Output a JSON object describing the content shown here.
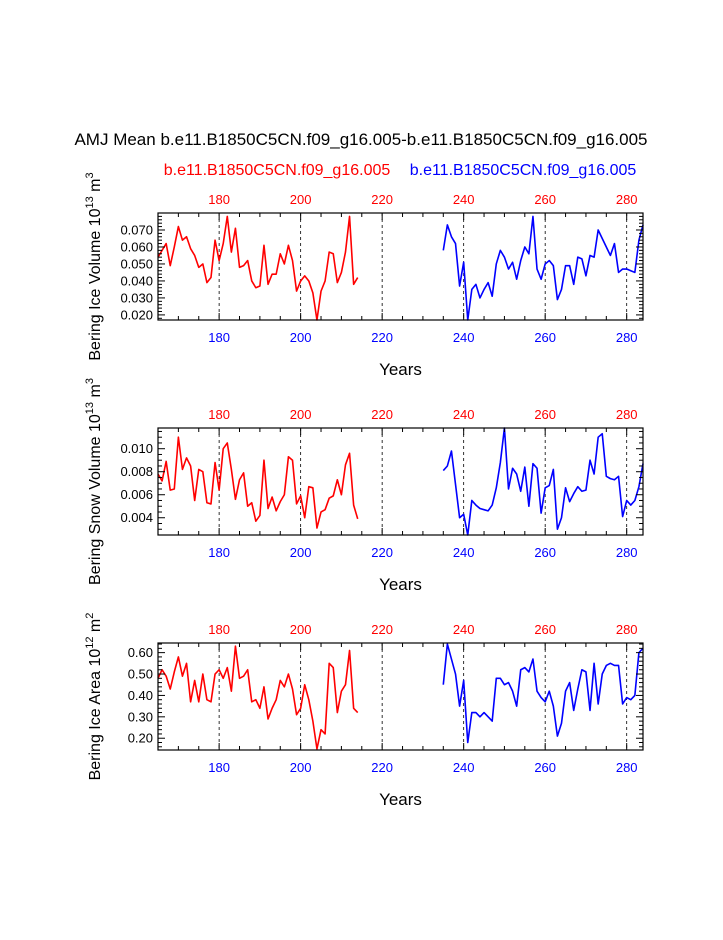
{
  "title": "AMJ Mean b.e11.B1850C5CN.f09_g16.005-b.e11.B1850C5CN.f09_g16.005",
  "legend": {
    "left_case": "b.e11.B1850C5CN.f09_g16.005",
    "right_case": "b.e11.B1850C5CN.f09_g16.005",
    "left_color": "#ff0000",
    "right_color": "#0000ff"
  },
  "chart_data": [
    {
      "type": "line",
      "ylabel_main": "Bering Ice Volume 10",
      "ylabel_exp": "13",
      "ylabel_unit": " m",
      "ylabel_unit_exp": "3",
      "xlabel": "Years",
      "xlim": [
        165,
        284
      ],
      "ylim": [
        0.017,
        0.08
      ],
      "xticks": [
        180,
        200,
        220,
        240,
        260,
        280
      ],
      "top_xticks": [
        180,
        200,
        220,
        240,
        260,
        280
      ],
      "bottom_xticks": [
        180,
        200,
        220,
        240,
        260,
        280
      ],
      "yticks": [
        0.02,
        0.03,
        0.04,
        0.05,
        0.06,
        0.07
      ],
      "ytick_labels": [
        "0.020",
        "0.030",
        "0.040",
        "0.050",
        "0.060",
        "0.070"
      ],
      "yminor_step": 0.002,
      "gridlines_x": [
        180,
        200,
        220,
        240,
        260,
        280
      ],
      "series": [
        {
          "color": "#ff0000",
          "x": [
            165,
            166,
            167,
            168,
            169,
            170,
            171,
            172,
            173,
            174,
            175,
            176,
            177,
            178,
            179,
            180,
            181,
            182,
            183,
            184,
            185,
            186,
            187,
            188,
            189,
            190,
            191,
            192,
            193,
            194,
            195,
            196,
            197,
            198,
            199,
            200,
            201,
            202,
            203,
            204,
            205,
            206,
            207,
            208,
            209,
            210,
            211,
            212,
            213,
            214
          ],
          "y": [
            0.054,
            0.058,
            0.062,
            0.049,
            0.06,
            0.072,
            0.064,
            0.066,
            0.059,
            0.055,
            0.048,
            0.05,
            0.039,
            0.042,
            0.064,
            0.052,
            0.062,
            0.078,
            0.057,
            0.071,
            0.048,
            0.049,
            0.052,
            0.04,
            0.036,
            0.037,
            0.061,
            0.038,
            0.044,
            0.044,
            0.056,
            0.05,
            0.061,
            0.052,
            0.034,
            0.04,
            0.043,
            0.04,
            0.033,
            0.017,
            0.034,
            0.04,
            0.057,
            0.056,
            0.039,
            0.045,
            0.057,
            0.078,
            0.038,
            0.042
          ]
        },
        {
          "color": "#0000ff",
          "x": [
            235,
            236,
            237,
            238,
            239,
            240,
            241,
            242,
            243,
            244,
            245,
            246,
            247,
            248,
            249,
            250,
            251,
            252,
            253,
            254,
            255,
            256,
            257,
            258,
            259,
            260,
            261,
            262,
            263,
            264,
            265,
            266,
            267,
            268,
            269,
            270,
            271,
            272,
            273,
            274,
            275,
            276,
            277,
            278,
            279,
            280,
            281,
            282,
            283,
            284
          ],
          "y": [
            0.058,
            0.073,
            0.066,
            0.062,
            0.037,
            0.051,
            0.017,
            0.035,
            0.038,
            0.03,
            0.035,
            0.039,
            0.031,
            0.05,
            0.058,
            0.054,
            0.047,
            0.051,
            0.041,
            0.052,
            0.06,
            0.056,
            0.078,
            0.047,
            0.041,
            0.05,
            0.052,
            0.049,
            0.029,
            0.035,
            0.049,
            0.049,
            0.038,
            0.054,
            0.053,
            0.043,
            0.055,
            0.054,
            0.07,
            0.065,
            0.06,
            0.055,
            0.062,
            0.045,
            0.047,
            0.047,
            0.046,
            0.045,
            0.064,
            0.073
          ]
        }
      ]
    },
    {
      "type": "line",
      "ylabel_main": "Bering Snow Volume 10",
      "ylabel_exp": "13",
      "ylabel_unit": " m",
      "ylabel_unit_exp": "3",
      "xlabel": "Years",
      "xlim": [
        165,
        284
      ],
      "ylim": [
        0.0025,
        0.0118
      ],
      "xticks": [
        180,
        200,
        220,
        240,
        260,
        280
      ],
      "top_xticks": [
        180,
        200,
        220,
        240,
        260,
        280
      ],
      "bottom_xticks": [
        180,
        200,
        220,
        240,
        260,
        280
      ],
      "yticks": [
        0.004,
        0.006,
        0.008,
        0.01
      ],
      "ytick_labels": [
        "0.004",
        "0.006",
        "0.008",
        "0.010"
      ],
      "yminor_step": 0.0005,
      "gridlines_x": [
        180,
        200,
        220,
        240,
        260,
        280
      ],
      "series": [
        {
          "color": "#ff0000",
          "x": [
            165,
            166,
            167,
            168,
            169,
            170,
            171,
            172,
            173,
            174,
            175,
            176,
            177,
            178,
            179,
            180,
            181,
            182,
            183,
            184,
            185,
            186,
            187,
            188,
            189,
            190,
            191,
            192,
            193,
            194,
            195,
            196,
            197,
            198,
            199,
            200,
            201,
            202,
            203,
            204,
            205,
            206,
            207,
            208,
            209,
            210,
            211,
            212,
            213,
            214
          ],
          "y": [
            0.0078,
            0.0072,
            0.0089,
            0.0064,
            0.0065,
            0.011,
            0.0082,
            0.0092,
            0.0085,
            0.0055,
            0.0082,
            0.008,
            0.0053,
            0.0052,
            0.0088,
            0.0064,
            0.01,
            0.0105,
            0.0082,
            0.0056,
            0.0073,
            0.0079,
            0.005,
            0.0053,
            0.0037,
            0.0042,
            0.009,
            0.0048,
            0.0058,
            0.0046,
            0.0054,
            0.006,
            0.0093,
            0.009,
            0.0052,
            0.0059,
            0.004,
            0.0067,
            0.0066,
            0.0031,
            0.0045,
            0.0047,
            0.0057,
            0.0059,
            0.0073,
            0.006,
            0.0086,
            0.0096,
            0.0051,
            0.0039
          ]
        },
        {
          "color": "#0000ff",
          "x": [
            235,
            236,
            237,
            238,
            239,
            240,
            241,
            242,
            243,
            244,
            245,
            246,
            247,
            248,
            249,
            250,
            251,
            252,
            253,
            254,
            255,
            256,
            257,
            258,
            259,
            260,
            261,
            262,
            263,
            264,
            265,
            266,
            267,
            268,
            269,
            270,
            271,
            272,
            273,
            274,
            275,
            276,
            277,
            278,
            279,
            280,
            281,
            282,
            283,
            284
          ],
          "y": [
            0.0081,
            0.0085,
            0.0098,
            0.0069,
            0.004,
            0.0043,
            0.0025,
            0.0055,
            0.0051,
            0.0048,
            0.0047,
            0.0046,
            0.0051,
            0.0066,
            0.0088,
            0.0118,
            0.0065,
            0.0083,
            0.0078,
            0.0063,
            0.0084,
            0.005,
            0.0087,
            0.0083,
            0.0044,
            0.0066,
            0.0068,
            0.0082,
            0.003,
            0.004,
            0.0066,
            0.0054,
            0.0061,
            0.0067,
            0.0063,
            0.0064,
            0.009,
            0.0078,
            0.011,
            0.0113,
            0.0076,
            0.0074,
            0.0073,
            0.0076,
            0.0041,
            0.0055,
            0.0051,
            0.0055,
            0.0067,
            0.0087
          ]
        }
      ]
    },
    {
      "type": "line",
      "ylabel_main": "Bering Ice Area 10",
      "ylabel_exp": "12",
      "ylabel_unit": " m",
      "ylabel_unit_exp": "2",
      "xlabel": "Years",
      "xlim": [
        165,
        284
      ],
      "ylim": [
        0.145,
        0.645
      ],
      "xticks": [
        180,
        200,
        220,
        240,
        260,
        280
      ],
      "top_xticks": [
        180,
        200,
        220,
        240,
        260,
        280
      ],
      "bottom_xticks": [
        180,
        200,
        220,
        240,
        260,
        280
      ],
      "yticks": [
        0.2,
        0.3,
        0.4,
        0.5,
        0.6
      ],
      "ytick_labels": [
        "0.20",
        "0.30",
        "0.40",
        "0.50",
        "0.60"
      ],
      "yminor_step": 0.02,
      "gridlines_x": [
        180,
        200,
        220,
        240,
        260,
        280
      ],
      "series": [
        {
          "color": "#ff0000",
          "x": [
            165,
            166,
            167,
            168,
            169,
            170,
            171,
            172,
            173,
            174,
            175,
            176,
            177,
            178,
            179,
            180,
            181,
            182,
            183,
            184,
            185,
            186,
            187,
            188,
            189,
            190,
            191,
            192,
            193,
            194,
            195,
            196,
            197,
            198,
            199,
            200,
            201,
            202,
            203,
            204,
            205,
            206,
            207,
            208,
            209,
            210,
            211,
            212,
            213,
            214
          ],
          "y": [
            0.48,
            0.52,
            0.49,
            0.43,
            0.51,
            0.58,
            0.49,
            0.55,
            0.37,
            0.47,
            0.37,
            0.5,
            0.38,
            0.37,
            0.5,
            0.52,
            0.48,
            0.53,
            0.42,
            0.63,
            0.48,
            0.49,
            0.52,
            0.37,
            0.38,
            0.34,
            0.44,
            0.29,
            0.34,
            0.38,
            0.47,
            0.44,
            0.5,
            0.43,
            0.31,
            0.34,
            0.45,
            0.38,
            0.28,
            0.15,
            0.24,
            0.22,
            0.55,
            0.53,
            0.32,
            0.42,
            0.45,
            0.61,
            0.34,
            0.32
          ]
        },
        {
          "color": "#0000ff",
          "x": [
            235,
            236,
            237,
            238,
            239,
            240,
            241,
            242,
            243,
            244,
            245,
            246,
            247,
            248,
            249,
            250,
            251,
            252,
            253,
            254,
            255,
            256,
            257,
            258,
            259,
            260,
            261,
            262,
            263,
            264,
            265,
            266,
            267,
            268,
            269,
            270,
            271,
            272,
            273,
            274,
            275,
            276,
            277,
            278,
            279,
            280,
            281,
            282,
            283,
            284
          ],
          "y": [
            0.45,
            0.64,
            0.57,
            0.5,
            0.35,
            0.47,
            0.18,
            0.32,
            0.32,
            0.3,
            0.32,
            0.3,
            0.28,
            0.48,
            0.48,
            0.45,
            0.46,
            0.42,
            0.35,
            0.52,
            0.53,
            0.51,
            0.57,
            0.42,
            0.39,
            0.37,
            0.42,
            0.35,
            0.21,
            0.27,
            0.42,
            0.46,
            0.33,
            0.43,
            0.52,
            0.51,
            0.33,
            0.55,
            0.36,
            0.5,
            0.54,
            0.55,
            0.54,
            0.54,
            0.36,
            0.39,
            0.38,
            0.4,
            0.6,
            0.62
          ]
        }
      ]
    }
  ]
}
